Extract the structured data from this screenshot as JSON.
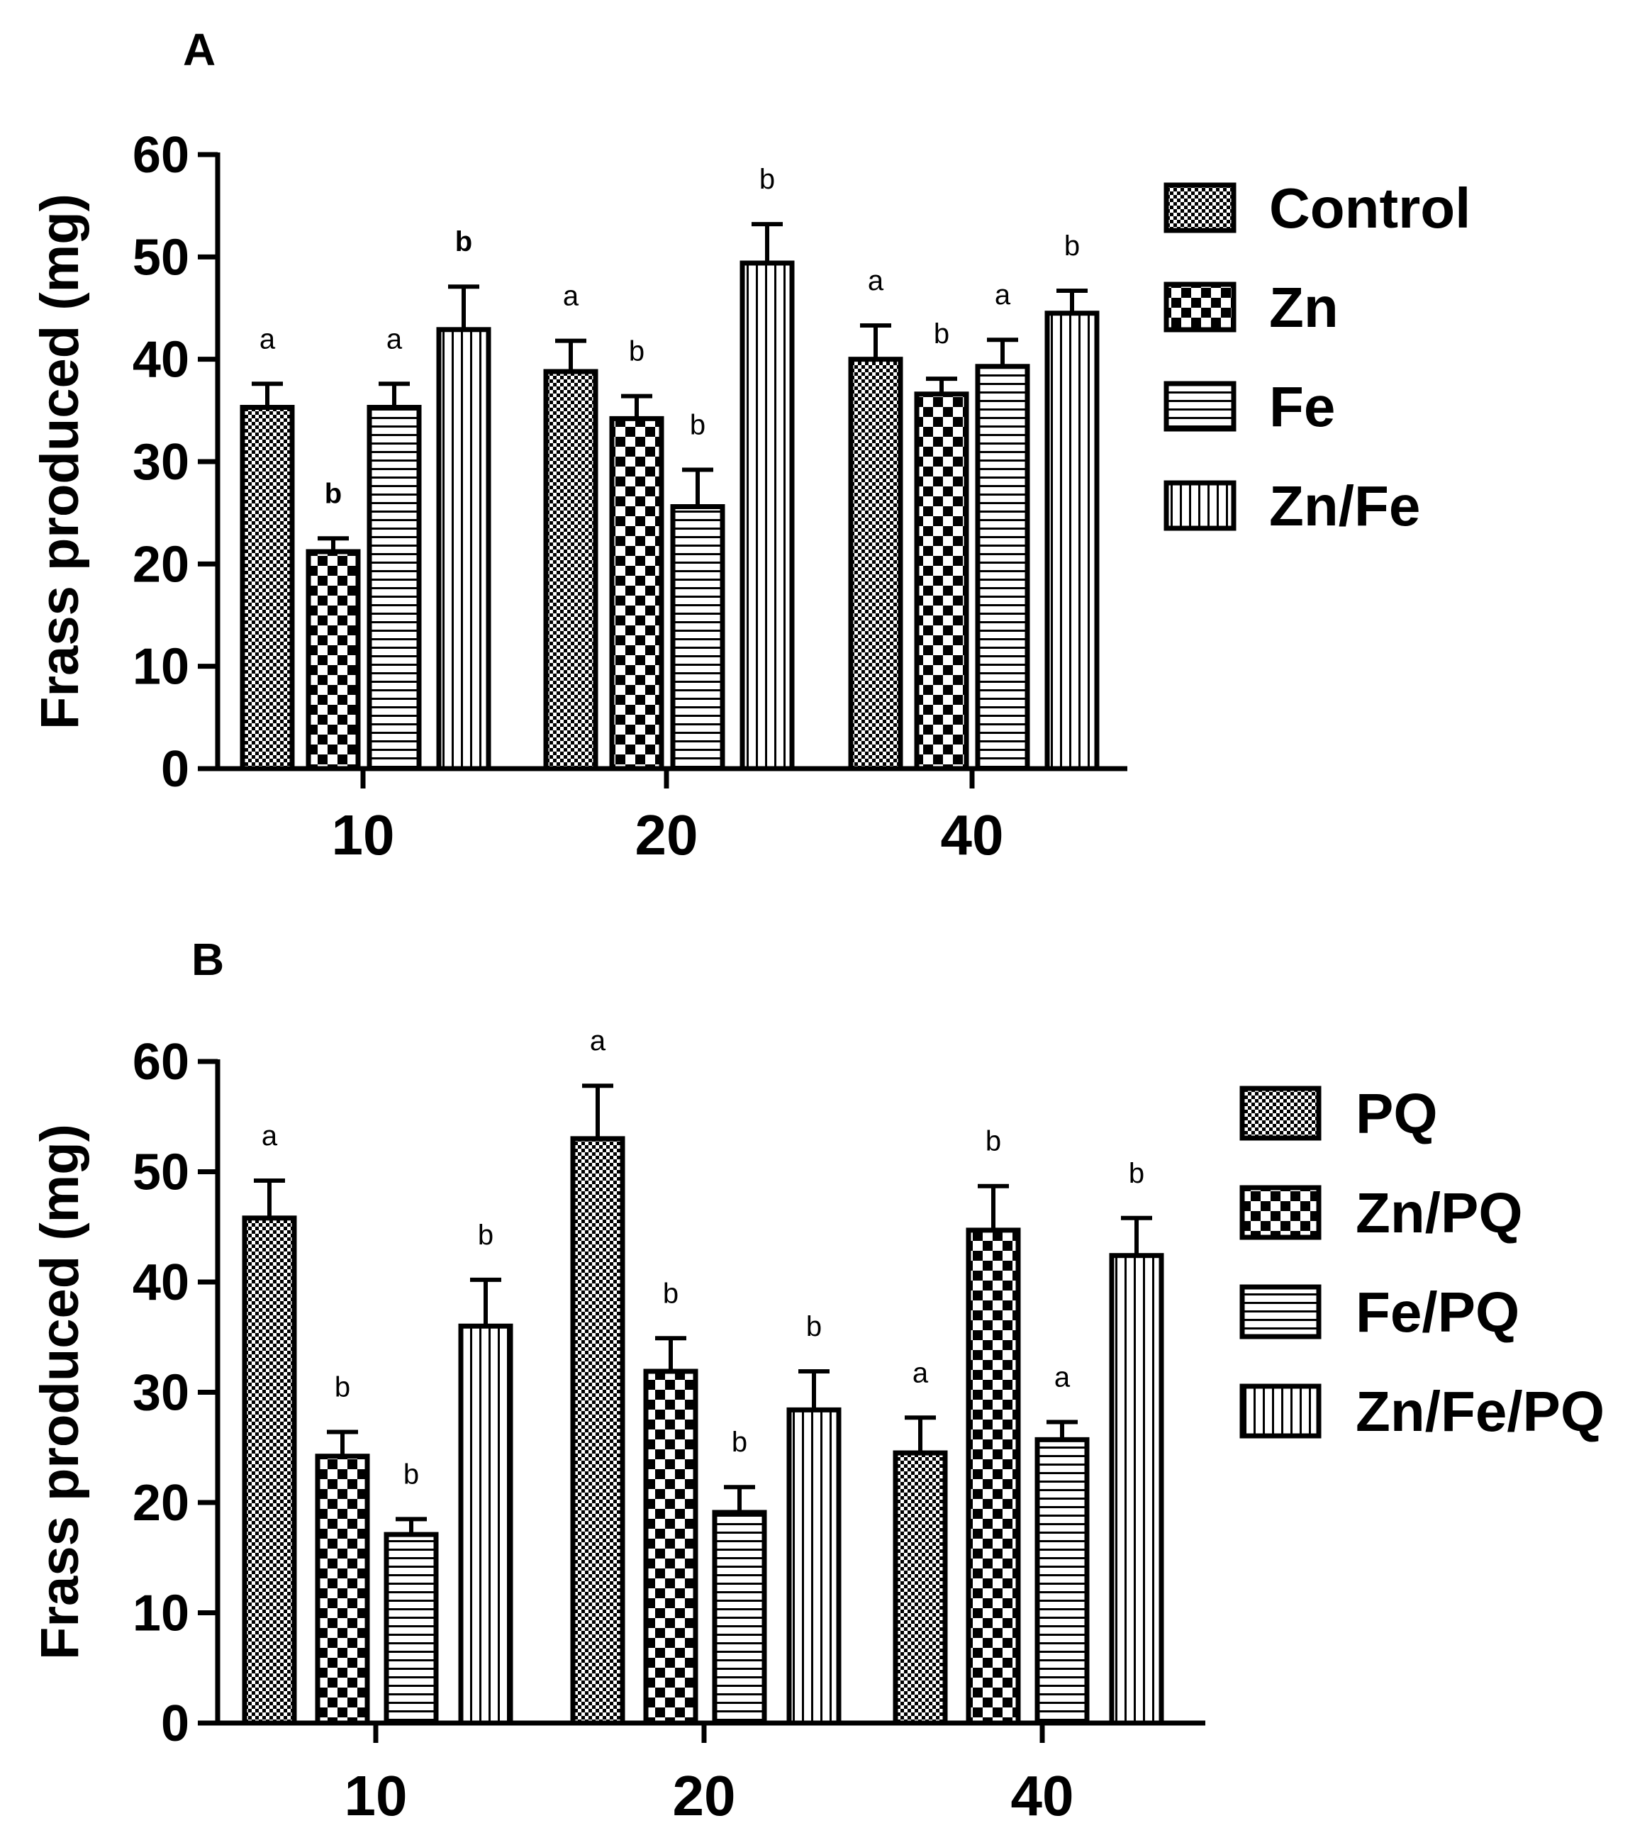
{
  "chart_data": [
    {
      "panel": "A",
      "type": "bar",
      "ylabel": "Frass produced (mg)",
      "xlabel": "",
      "ylim": [
        0,
        60
      ],
      "yticks": [
        0,
        10,
        20,
        30,
        40,
        50,
        60
      ],
      "categories": [
        "10",
        "20",
        "40"
      ],
      "series": [
        {
          "name": "Control",
          "pattern": "fine-check",
          "values": [
            35.3,
            38.8,
            40.0
          ],
          "errors": [
            2.3,
            3.0,
            3.3
          ],
          "letters": [
            "a",
            "a",
            "a"
          ]
        },
        {
          "name": "Zn",
          "pattern": "coarse-check",
          "values": [
            21.2,
            34.2,
            36.6
          ],
          "errors": [
            1.3,
            2.2,
            1.5
          ],
          "letters": [
            "b",
            "b",
            "b"
          ]
        },
        {
          "name": "Fe",
          "pattern": "horizontal-lines",
          "values": [
            35.3,
            25.6,
            39.3
          ],
          "errors": [
            2.3,
            3.6,
            2.6
          ],
          "letters": [
            "a",
            "b",
            "a"
          ]
        },
        {
          "name": "Zn/Fe",
          "pattern": "vertical-lines",
          "values": [
            42.9,
            49.4,
            44.5
          ],
          "errors": [
            4.2,
            3.8,
            2.2
          ],
          "letters": [
            "b",
            "b",
            "b"
          ]
        }
      ],
      "legend_position": "right"
    },
    {
      "panel": "B",
      "type": "bar",
      "ylabel": "Frass produced (mg)",
      "xlabel": "",
      "ylim": [
        0,
        60
      ],
      "yticks": [
        0,
        10,
        20,
        30,
        40,
        50,
        60
      ],
      "categories": [
        "10",
        "20",
        "40"
      ],
      "series": [
        {
          "name": "PQ",
          "pattern": "fine-check",
          "values": [
            45.8,
            53.0,
            24.5
          ],
          "errors": [
            3.4,
            4.8,
            3.2
          ],
          "letters": [
            "a",
            "a",
            "a"
          ]
        },
        {
          "name": "Zn/PQ",
          "pattern": "coarse-check",
          "values": [
            24.2,
            31.9,
            44.7
          ],
          "errors": [
            2.2,
            3.0,
            4.0
          ],
          "letters": [
            "b",
            "b",
            "b"
          ]
        },
        {
          "name": "Fe/PQ",
          "pattern": "horizontal-lines",
          "values": [
            17.1,
            19.1,
            25.7
          ],
          "errors": [
            1.4,
            2.3,
            1.6
          ],
          "letters": [
            "b",
            "b",
            "a"
          ]
        },
        {
          "name": "Zn/Fe/PQ",
          "pattern": "vertical-lines",
          "values": [
            36.0,
            28.4,
            42.4
          ],
          "errors": [
            4.2,
            3.5,
            3.4
          ],
          "letters": [
            "b",
            "b",
            "b"
          ]
        }
      ],
      "legend_position": "right"
    }
  ]
}
